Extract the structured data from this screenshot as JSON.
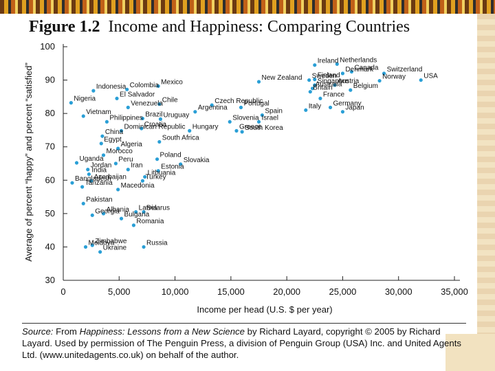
{
  "title": {
    "bold": "Figure 1.2",
    "text": "Income and Happiness: Comparing Countries"
  },
  "source": {
    "prefix": "Source:",
    "line1": " From ",
    "book": "Happiness: Lessons from a New Science",
    "line1b": " by Richard Layard, copyright © 2005 by",
    "rest": "Richard Layard. Used by permission of The Penguin Press, a division of Penguin Group (USA) Inc. and United Agents Ltd. (www.unitedagents.co.uk) on behalf of the author."
  },
  "colors": {
    "point": "#2a9fd6",
    "axis": "#222222",
    "title": "#111111"
  },
  "chart_data": {
    "type": "scatter",
    "xlabel": "Income per head (U.S. $ per year)",
    "ylabel": "Average of percent “happy” and percent “satisfied”",
    "xlim": [
      0,
      35000
    ],
    "ylim": [
      30,
      100
    ],
    "xticks": [
      "0",
      "5,000",
      "10,000",
      "15,000",
      "20,000",
      "25,000",
      "30,000",
      "35,000"
    ],
    "yticks": [
      "30",
      "40",
      "50",
      "60",
      "70",
      "80",
      "90",
      "100"
    ],
    "grid": false,
    "points": [
      {
        "label": "Ireland",
        "x": 22500,
        "y": 94.5
      },
      {
        "label": "Netherlands",
        "x": 24500,
        "y": 94.8
      },
      {
        "label": "Denmark",
        "x": 25000,
        "y": 92
      },
      {
        "label": "Canada",
        "x": 25800,
        "y": 92.5
      },
      {
        "label": "Switzerland",
        "x": 28700,
        "y": 92
      },
      {
        "label": "Sweden",
        "x": 22000,
        "y": 90
      },
      {
        "label": "Finland",
        "x": 22500,
        "y": 90.2
      },
      {
        "label": "Norway",
        "x": 28300,
        "y": 89.8
      },
      {
        "label": "USA",
        "x": 32000,
        "y": 90
      },
      {
        "label": "New Zealand",
        "x": 17500,
        "y": 89.5
      },
      {
        "label": "Singapore",
        "x": 22500,
        "y": 88.5
      },
      {
        "label": "Austria",
        "x": 24300,
        "y": 88.5
      },
      {
        "label": "Australia",
        "x": 22300,
        "y": 87.5
      },
      {
        "label": "Britain",
        "x": 22100,
        "y": 86.5
      },
      {
        "label": "Belgium",
        "x": 25700,
        "y": 87
      },
      {
        "label": "France",
        "x": 23000,
        "y": 84.5
      },
      {
        "label": "Germany",
        "x": 23900,
        "y": 81.8
      },
      {
        "label": "Italy",
        "x": 21700,
        "y": 81
      },
      {
        "label": "Japan",
        "x": 25000,
        "y": 80.5
      },
      {
        "label": "Indonesia",
        "x": 2700,
        "y": 86.8
      },
      {
        "label": "Colombia",
        "x": 5700,
        "y": 87.2
      },
      {
        "label": "Mexico",
        "x": 8500,
        "y": 88.2
      },
      {
        "label": "El Salvador",
        "x": 4800,
        "y": 84.5
      },
      {
        "label": "Nigeria",
        "x": 700,
        "y": 83.2
      },
      {
        "label": "Chile",
        "x": 8600,
        "y": 82.8
      },
      {
        "label": "Venezuela",
        "x": 5800,
        "y": 81.8
      },
      {
        "label": "Czech Republic",
        "x": 13300,
        "y": 82.5
      },
      {
        "label": "Portugal",
        "x": 15900,
        "y": 81.8
      },
      {
        "label": "Argentina",
        "x": 11800,
        "y": 80.5
      },
      {
        "label": "Vietnam",
        "x": 1800,
        "y": 79.2
      },
      {
        "label": "Brazil",
        "x": 7100,
        "y": 78.5
      },
      {
        "label": "Uruguay",
        "x": 8700,
        "y": 78.3
      },
      {
        "label": "Spain",
        "x": 17800,
        "y": 79.5
      },
      {
        "label": "Slovenia",
        "x": 14900,
        "y": 77.5
      },
      {
        "label": "Israel",
        "x": 17500,
        "y": 77.5
      },
      {
        "label": "Philippines",
        "x": 3900,
        "y": 77.5
      },
      {
        "label": "Croatia",
        "x": 7000,
        "y": 75.5
      },
      {
        "label": "Greece",
        "x": 15500,
        "y": 74.8
      },
      {
        "label": "South Korea",
        "x": 16000,
        "y": 74.5
      },
      {
        "label": "Dominican Republic",
        "x": 5200,
        "y": 74.8
      },
      {
        "label": "Hungary",
        "x": 11300,
        "y": 74.8
      },
      {
        "label": "China",
        "x": 3500,
        "y": 73.2
      },
      {
        "label": "South Africa",
        "x": 8600,
        "y": 71.5
      },
      {
        "label": "Egypt",
        "x": 3400,
        "y": 71
      },
      {
        "label": "Algeria",
        "x": 4900,
        "y": 69.5
      },
      {
        "label": "Morocco",
        "x": 3600,
        "y": 67.5
      },
      {
        "label": "Poland",
        "x": 8400,
        "y": 66.3
      },
      {
        "label": "Uganda",
        "x": 1200,
        "y": 65.2
      },
      {
        "label": "Peru",
        "x": 4700,
        "y": 65
      },
      {
        "label": "Slovakia",
        "x": 10500,
        "y": 64.8
      },
      {
        "label": "Jordan",
        "x": 2200,
        "y": 63.2
      },
      {
        "label": "Iran",
        "x": 5800,
        "y": 63.2
      },
      {
        "label": "Estonia",
        "x": 8500,
        "y": 62.8
      },
      {
        "label": "India",
        "x": 2300,
        "y": 61.8
      },
      {
        "label": "Lithuania",
        "x": 7300,
        "y": 61
      },
      {
        "label": "Azerbaijan",
        "x": 2500,
        "y": 59.8
      },
      {
        "label": "Turkey",
        "x": 7100,
        "y": 59.8
      },
      {
        "label": "Bangladesh",
        "x": 800,
        "y": 59.2
      },
      {
        "label": "Tanzania",
        "x": 1700,
        "y": 58
      },
      {
        "label": "Macedonia",
        "x": 4900,
        "y": 57.2
      },
      {
        "label": "Pakistan",
        "x": 1800,
        "y": 53
      },
      {
        "label": "Latvia",
        "x": 6500,
        "y": 50.5
      },
      {
        "label": "Albania",
        "x": 3600,
        "y": 50
      },
      {
        "label": "Belarus",
        "x": 7200,
        "y": 50.5
      },
      {
        "label": "Georgia",
        "x": 2600,
        "y": 49.5
      },
      {
        "label": "Bulgaria",
        "x": 5200,
        "y": 48.5
      },
      {
        "label": "Romania",
        "x": 6300,
        "y": 46.5
      },
      {
        "label": "Moldova",
        "x": 2000,
        "y": 40
      },
      {
        "label": "Zimbabwe",
        "x": 2600,
        "y": 40.5
      },
      {
        "label": "Russia",
        "x": 7200,
        "y": 40
      },
      {
        "label": "Ukraine",
        "x": 3300,
        "y": 38.5
      }
    ]
  }
}
